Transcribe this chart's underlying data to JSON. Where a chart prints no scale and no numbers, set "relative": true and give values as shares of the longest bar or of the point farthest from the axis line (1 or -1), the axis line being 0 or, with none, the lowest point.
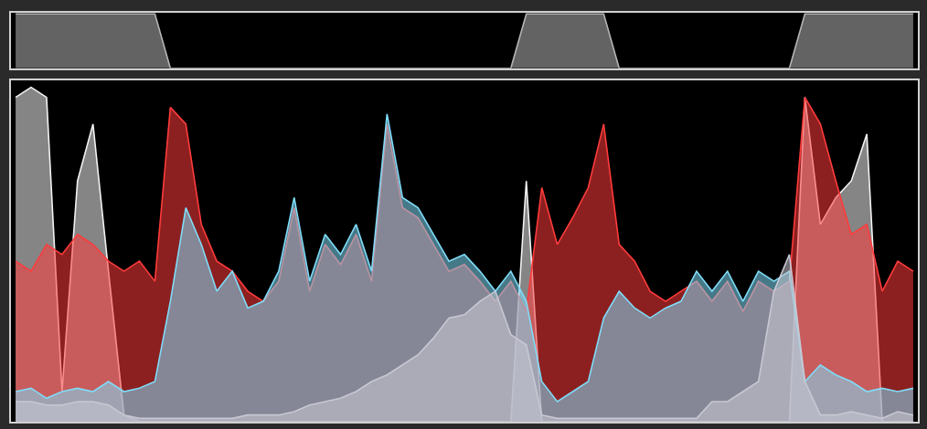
{
  "chart_data": [
    {
      "type": "area",
      "relative": true,
      "categories": [
        null,
        null,
        null,
        null,
        null,
        null,
        null,
        null,
        null,
        null,
        null,
        null,
        null,
        null,
        null,
        null,
        null,
        null,
        null,
        null,
        null,
        null,
        null,
        null,
        null,
        null,
        null,
        null,
        null,
        null,
        null,
        null,
        null,
        null,
        null,
        null,
        null,
        null,
        null,
        null,
        null,
        null,
        null,
        null,
        null,
        null,
        null,
        null,
        null,
        null,
        null,
        null,
        null,
        null,
        null,
        null,
        null,
        null,
        null
      ],
      "series": [
        {
          "color": "#b4b4b4",
          "values": [
            1,
            1,
            1,
            1,
            1,
            1,
            1,
            1,
            1,
            1,
            0,
            0,
            0,
            0,
            0,
            0,
            0,
            0,
            0,
            0,
            0,
            0,
            0,
            0,
            0,
            0,
            0,
            0,
            0,
            0,
            0,
            0,
            0,
            1,
            1,
            1,
            1,
            1,
            1,
            0,
            0,
            0,
            0,
            0,
            0,
            0,
            0,
            0,
            0,
            0,
            0,
            1,
            1,
            1,
            1,
            1,
            1,
            1,
            1
          ]
        }
      ]
    },
    {
      "type": "area",
      "relative": true,
      "categories": [
        null,
        null,
        null,
        null,
        null,
        null,
        null,
        null,
        null,
        null,
        null,
        null,
        null,
        null,
        null,
        null,
        null,
        null,
        null,
        null,
        null,
        null,
        null,
        null,
        null,
        null,
        null,
        null,
        null,
        null,
        null,
        null,
        null,
        null,
        null,
        null,
        null,
        null,
        null,
        null,
        null,
        null,
        null,
        null,
        null,
        null,
        null,
        null,
        null,
        null,
        null,
        null,
        null,
        null,
        null,
        null,
        null,
        null,
        null
      ],
      "series": [
        {
          "color": "#f2f2f2",
          "values": [
            0.97,
            1,
            0.97,
            0.09,
            0.72,
            0.89,
            0.45,
            0.02,
            0,
            0,
            0,
            0,
            0,
            0,
            0,
            0,
            0,
            0,
            0,
            0,
            0,
            0,
            0,
            0,
            0,
            0,
            0,
            0,
            0,
            0,
            0,
            0,
            0,
            0.72,
            0,
            0,
            0,
            0,
            0,
            0,
            0,
            0,
            0,
            0,
            0,
            0,
            0,
            0,
            0,
            0,
            0,
            0.97,
            0.59,
            0.67,
            0.72,
            0.86,
            0,
            0,
            0
          ]
        },
        {
          "color": "#ff3b3b",
          "values": [
            0.48,
            0.45,
            0.53,
            0.5,
            0.56,
            0.53,
            0.48,
            0.45,
            0.48,
            0.42,
            0.94,
            0.89,
            0.59,
            0.48,
            0.45,
            0.39,
            0.36,
            0.42,
            0.64,
            0.39,
            0.53,
            0.47,
            0.56,
            0.42,
            0.89,
            0.64,
            0.61,
            0.53,
            0.45,
            0.47,
            0.42,
            0.36,
            0.42,
            0.33,
            0.7,
            0.53,
            0.61,
            0.7,
            0.89,
            0.53,
            0.48,
            0.39,
            0.36,
            0.39,
            0.42,
            0.36,
            0.42,
            0.33,
            0.42,
            0.39,
            0.42,
            0.97,
            0.89,
            0.72,
            0.56,
            0.59,
            0.39,
            0.48,
            0.45
          ]
        },
        {
          "color": "#7fdcf8",
          "values": [
            0.09,
            0.1,
            0.07,
            0.09,
            0.1,
            0.09,
            0.12,
            0.09,
            0.1,
            0.12,
            0.36,
            0.64,
            0.53,
            0.39,
            0.45,
            0.34,
            0.36,
            0.45,
            0.67,
            0.42,
            0.56,
            0.5,
            0.59,
            0.45,
            0.92,
            0.67,
            0.64,
            0.56,
            0.48,
            0.5,
            0.45,
            0.39,
            0.45,
            0.36,
            0.12,
            0.06,
            0.09,
            0.12,
            0.31,
            0.39,
            0.34,
            0.31,
            0.34,
            0.36,
            0.45,
            0.39,
            0.45,
            0.36,
            0.45,
            0.42,
            0.45,
            0.12,
            0.17,
            0.14,
            0.12,
            0.09,
            0.1,
            0.09,
            0.1
          ]
        },
        {
          "color": "#c8c8d4",
          "values": [
            0.06,
            0.06,
            0.05,
            0.05,
            0.06,
            0.06,
            0.05,
            0.02,
            0.01,
            0.01,
            0.01,
            0.01,
            0.01,
            0.01,
            0.01,
            0.02,
            0.02,
            0.02,
            0.03,
            0.05,
            0.06,
            0.07,
            0.09,
            0.12,
            0.14,
            0.17,
            0.2,
            0.25,
            0.31,
            0.32,
            0.36,
            0.39,
            0.26,
            0.23,
            0.02,
            0.01,
            0.01,
            0.01,
            0.01,
            0.01,
            0.01,
            0.01,
            0.01,
            0.01,
            0.01,
            0.06,
            0.06,
            0.09,
            0.12,
            0.39,
            0.5,
            0.12,
            0.02,
            0.02,
            0.03,
            0.02,
            0.01,
            0.03,
            0.02
          ]
        }
      ]
    }
  ]
}
